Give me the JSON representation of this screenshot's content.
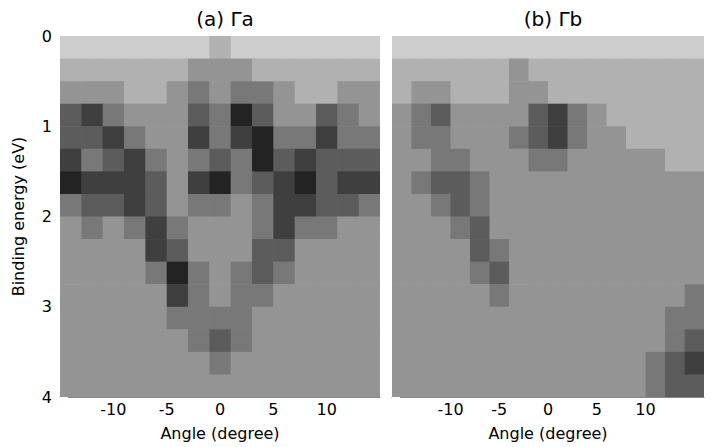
{
  "chart_data": [
    {
      "type": "heatmap",
      "title": "(a) Γa",
      "xlabel": "Angle (degree)",
      "ylabel": "Binding energy (eV)",
      "xlim": [
        -15,
        15
      ],
      "ylim": [
        0,
        4
      ],
      "xticks": [
        -10,
        -5,
        0,
        5,
        10
      ],
      "yticks": [
        0,
        1,
        2,
        3,
        4
      ],
      "x": [
        -14,
        -12,
        -10,
        -8,
        -6,
        -4,
        -2,
        0,
        2,
        4,
        6,
        8,
        10,
        12,
        14
      ],
      "y": [
        0.125,
        0.375,
        0.625,
        0.875,
        1.125,
        1.375,
        1.625,
        1.875,
        2.125,
        2.375,
        2.625,
        2.875,
        3.125,
        3.375,
        3.625,
        3.875
      ],
      "cells": [
        [
          1,
          1,
          1,
          1,
          1,
          1,
          1,
          2,
          1,
          1,
          1,
          1,
          1,
          1,
          1
        ],
        [
          2,
          2,
          2,
          2,
          2,
          2,
          3,
          3,
          3,
          2,
          2,
          2,
          2,
          2,
          2
        ],
        [
          3,
          3,
          3,
          2,
          2,
          3,
          4,
          3,
          4,
          4,
          3,
          2,
          2,
          3,
          3
        ],
        [
          5,
          6,
          4,
          3,
          3,
          3,
          5,
          4,
          7,
          5,
          3,
          3,
          5,
          4,
          3
        ],
        [
          5,
          5,
          6,
          4,
          3,
          3,
          6,
          4,
          6,
          7,
          4,
          4,
          6,
          4,
          4
        ],
        [
          6,
          4,
          5,
          6,
          4,
          3,
          4,
          5,
          4,
          7,
          5,
          6,
          5,
          5,
          5
        ],
        [
          7,
          6,
          6,
          6,
          5,
          3,
          6,
          7,
          4,
          5,
          6,
          7,
          5,
          6,
          6
        ],
        [
          4,
          5,
          5,
          6,
          5,
          3,
          4,
          4,
          3,
          4,
          6,
          6,
          5,
          5,
          4
        ],
        [
          3,
          4,
          3,
          4,
          6,
          4,
          3,
          3,
          3,
          4,
          6,
          4,
          4,
          3,
          3
        ],
        [
          3,
          3,
          3,
          3,
          6,
          5,
          3,
          3,
          3,
          5,
          5,
          3,
          3,
          3,
          3
        ],
        [
          3,
          3,
          3,
          3,
          4,
          7,
          4,
          3,
          4,
          5,
          4,
          3,
          3,
          3,
          3
        ],
        [
          3,
          3,
          3,
          3,
          3,
          6,
          4,
          3,
          4,
          4,
          3,
          3,
          3,
          3,
          3
        ],
        [
          3,
          3,
          3,
          3,
          3,
          4,
          4,
          4,
          4,
          3,
          3,
          3,
          3,
          3,
          3
        ],
        [
          3,
          3,
          3,
          3,
          3,
          3,
          4,
          5,
          4,
          3,
          3,
          3,
          3,
          3,
          3
        ],
        [
          3,
          3,
          3,
          3,
          3,
          3,
          3,
          4,
          3,
          3,
          3,
          3,
          3,
          3,
          3
        ],
        [
          3,
          3,
          3,
          3,
          3,
          3,
          3,
          3,
          3,
          3,
          3,
          3,
          3,
          3,
          3
        ]
      ]
    },
    {
      "type": "heatmap",
      "title": "(b) Γb",
      "xlabel": "Angle (degree)",
      "tick_labels": "x",
      "xlim": [
        -16,
        16
      ],
      "ylim": [
        0,
        4
      ],
      "xticks": [
        -10,
        -5,
        0,
        5,
        10
      ],
      "yticks": [
        0,
        1,
        2,
        3,
        4
      ],
      "x": [
        -15,
        -13,
        -11,
        -9,
        -7,
        -5,
        -3,
        -1,
        1,
        3,
        5,
        7,
        9,
        11,
        13,
        15
      ],
      "y": [
        0.125,
        0.375,
        0.625,
        0.875,
        1.125,
        1.375,
        1.625,
        1.875,
        2.125,
        2.375,
        2.625,
        2.875,
        3.125,
        3.375,
        3.625,
        3.875
      ],
      "cells": [
        [
          1,
          1,
          1,
          1,
          1,
          1,
          1,
          1,
          1,
          1,
          1,
          1,
          1,
          1,
          1,
          1
        ],
        [
          2,
          2,
          2,
          2,
          2,
          2,
          3,
          2,
          2,
          2,
          2,
          2,
          2,
          2,
          2,
          2
        ],
        [
          2,
          3,
          3,
          2,
          2,
          2,
          3,
          3,
          2,
          2,
          2,
          2,
          2,
          2,
          2,
          2
        ],
        [
          3,
          4,
          5,
          3,
          3,
          3,
          3,
          5,
          6,
          4,
          3,
          2,
          2,
          2,
          2,
          2
        ],
        [
          3,
          4,
          4,
          3,
          3,
          3,
          4,
          5,
          6,
          4,
          3,
          3,
          2,
          2,
          2,
          2
        ],
        [
          3,
          3,
          4,
          4,
          3,
          3,
          3,
          4,
          4,
          3,
          3,
          3,
          3,
          3,
          2,
          2
        ],
        [
          3,
          4,
          5,
          5,
          4,
          3,
          3,
          3,
          3,
          3,
          3,
          3,
          3,
          3,
          3,
          3
        ],
        [
          3,
          3,
          4,
          5,
          4,
          3,
          3,
          3,
          3,
          3,
          3,
          3,
          3,
          3,
          3,
          3
        ],
        [
          3,
          3,
          3,
          4,
          5,
          3,
          3,
          3,
          3,
          3,
          3,
          3,
          3,
          3,
          3,
          3
        ],
        [
          3,
          3,
          3,
          3,
          5,
          4,
          3,
          3,
          3,
          3,
          3,
          3,
          3,
          3,
          3,
          3
        ],
        [
          3,
          3,
          3,
          3,
          4,
          5,
          3,
          3,
          3,
          3,
          3,
          3,
          3,
          3,
          3,
          3
        ],
        [
          3,
          3,
          3,
          3,
          3,
          4,
          3,
          3,
          3,
          3,
          3,
          3,
          3,
          3,
          3,
          4
        ],
        [
          3,
          3,
          3,
          3,
          3,
          3,
          3,
          3,
          3,
          3,
          3,
          3,
          3,
          3,
          4,
          4
        ],
        [
          3,
          3,
          3,
          3,
          3,
          3,
          3,
          3,
          3,
          3,
          3,
          3,
          3,
          3,
          4,
          5
        ],
        [
          3,
          3,
          3,
          3,
          3,
          3,
          3,
          3,
          3,
          3,
          3,
          3,
          3,
          4,
          5,
          6
        ],
        [
          3,
          3,
          3,
          3,
          3,
          3,
          3,
          3,
          3,
          3,
          3,
          3,
          3,
          4,
          5,
          5
        ]
      ]
    }
  ]
}
